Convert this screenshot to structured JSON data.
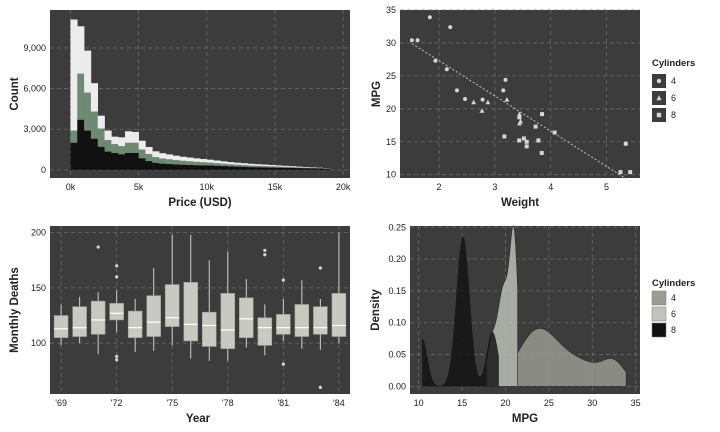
{
  "chart_data": [
    {
      "type": "histogram-stacked",
      "xlabel": "Price (USD)",
      "ylabel": "Count",
      "xlim": [
        -1500,
        20500
      ],
      "ylim": [
        -600,
        11800
      ],
      "xticks": [
        0,
        5000,
        10000,
        15000,
        20000
      ],
      "xtick_labels": [
        "0k",
        "5k",
        "10k",
        "15k",
        "20k"
      ],
      "yticks": [
        0,
        3000,
        6000,
        9000
      ],
      "ytick_labels": [
        "0",
        "3,000",
        "6,000",
        "9,000"
      ],
      "bin_edges": [
        0,
        500,
        1000,
        1500,
        2000,
        2500,
        3000,
        3500,
        4000,
        4500,
        5000,
        5500,
        6000,
        6500,
        7000,
        7500,
        8000,
        8500,
        9000,
        9500,
        10000,
        10500,
        11000,
        11500,
        12000,
        12500,
        13000,
        13500,
        14000,
        14500,
        15000,
        15500,
        16000,
        16500,
        17000,
        17500,
        18000,
        18500,
        19000
      ],
      "series": [
        {
          "name": "dark",
          "color": "#111111",
          "values": [
            2000,
            3700,
            2900,
            2300,
            1700,
            1350,
            1250,
            1150,
            1250,
            1250,
            850,
            650,
            520,
            460,
            430,
            400,
            380,
            360,
            340,
            330,
            320,
            300,
            280,
            260,
            240,
            220,
            200,
            190,
            180,
            170,
            160,
            150,
            140,
            130,
            120,
            110,
            100,
            90
          ]
        },
        {
          "name": "green",
          "color": "#6f8a72",
          "values": [
            900,
            3400,
            2800,
            2000,
            1350,
            850,
            650,
            600,
            750,
            750,
            650,
            520,
            420,
            380,
            350,
            320,
            290,
            270,
            250,
            230,
            210,
            190,
            170,
            150,
            140,
            130,
            120,
            110,
            100,
            90,
            80,
            70,
            60,
            50,
            40,
            35,
            30,
            25
          ]
        },
        {
          "name": "light",
          "color": "#ececec",
          "values": [
            8200,
            3500,
            3100,
            2100,
            950,
            700,
            550,
            650,
            850,
            800,
            650,
            520,
            430,
            390,
            360,
            330,
            300,
            280,
            260,
            240,
            220,
            200,
            180,
            160,
            150,
            140,
            130,
            120,
            110,
            100,
            90,
            80,
            70,
            60,
            50,
            40,
            30,
            20
          ]
        }
      ]
    },
    {
      "type": "scatter",
      "xlabel": "Weight",
      "ylabel": "MPG",
      "xlim": [
        1.3,
        5.6
      ],
      "ylim": [
        9.5,
        35.0
      ],
      "xticks": [
        2,
        3,
        4,
        5
      ],
      "xtick_labels": [
        "2",
        "3",
        "4",
        "5"
      ],
      "yticks": [
        10,
        15,
        20,
        25,
        30,
        35
      ],
      "ytick_labels": [
        "10",
        "15",
        "20",
        "25",
        "30",
        "35"
      ],
      "legend_title": "Cylinders",
      "legend": [
        "4",
        "6",
        "8"
      ],
      "points": [
        {
          "x": 2.62,
          "y": 21.0,
          "cyl": "6"
        },
        {
          "x": 2.875,
          "y": 21.0,
          "cyl": "6"
        },
        {
          "x": 2.32,
          "y": 22.8,
          "cyl": "4"
        },
        {
          "x": 3.215,
          "y": 21.4,
          "cyl": "6"
        },
        {
          "x": 3.44,
          "y": 18.7,
          "cyl": "8"
        },
        {
          "x": 3.46,
          "y": 18.1,
          "cyl": "6"
        },
        {
          "x": 3.57,
          "y": 14.3,
          "cyl": "8"
        },
        {
          "x": 3.19,
          "y": 24.4,
          "cyl": "4"
        },
        {
          "x": 3.15,
          "y": 22.8,
          "cyl": "4"
        },
        {
          "x": 3.44,
          "y": 19.2,
          "cyl": "6"
        },
        {
          "x": 3.44,
          "y": 17.8,
          "cyl": "6"
        },
        {
          "x": 4.07,
          "y": 16.4,
          "cyl": "8"
        },
        {
          "x": 3.73,
          "y": 17.3,
          "cyl": "8"
        },
        {
          "x": 3.78,
          "y": 15.2,
          "cyl": "8"
        },
        {
          "x": 5.25,
          "y": 10.4,
          "cyl": "8"
        },
        {
          "x": 5.424,
          "y": 10.4,
          "cyl": "8"
        },
        {
          "x": 5.345,
          "y": 14.7,
          "cyl": "8"
        },
        {
          "x": 2.2,
          "y": 32.4,
          "cyl": "4"
        },
        {
          "x": 1.615,
          "y": 30.4,
          "cyl": "4"
        },
        {
          "x": 1.835,
          "y": 33.9,
          "cyl": "4"
        },
        {
          "x": 2.465,
          "y": 21.5,
          "cyl": "4"
        },
        {
          "x": 3.52,
          "y": 15.5,
          "cyl": "8"
        },
        {
          "x": 3.435,
          "y": 15.2,
          "cyl": "8"
        },
        {
          "x": 3.84,
          "y": 13.3,
          "cyl": "8"
        },
        {
          "x": 3.845,
          "y": 19.2,
          "cyl": "8"
        },
        {
          "x": 1.935,
          "y": 27.3,
          "cyl": "4"
        },
        {
          "x": 2.14,
          "y": 26.0,
          "cyl": "4"
        },
        {
          "x": 1.513,
          "y": 30.4,
          "cyl": "4"
        },
        {
          "x": 3.17,
          "y": 15.8,
          "cyl": "8"
        },
        {
          "x": 2.77,
          "y": 19.7,
          "cyl": "6"
        },
        {
          "x": 3.57,
          "y": 15.0,
          "cyl": "8"
        },
        {
          "x": 2.78,
          "y": 21.4,
          "cyl": "4"
        }
      ],
      "trend": {
        "x0": 1.513,
        "y0": 29.9,
        "x1": 5.424,
        "y1": 9.0
      }
    },
    {
      "type": "boxplot",
      "xlabel": "Year",
      "ylabel": "Monthly Deaths",
      "xlim": [
        1968.4,
        1984.6
      ],
      "ylim": [
        54,
        206
      ],
      "xticks": [
        1969,
        1972,
        1975,
        1978,
        1981,
        1984
      ],
      "xtick_labels": [
        "'69",
        "'72",
        "'75",
        "'78",
        "'81",
        "'84"
      ],
      "yticks": [
        100,
        150,
        200
      ],
      "ytick_labels": [
        "100",
        "150",
        "200"
      ],
      "boxes": [
        {
          "year": 1969,
          "lw": 98,
          "q1": 105,
          "med": 113,
          "q3": 125,
          "uw": 135,
          "out": []
        },
        {
          "year": 1970,
          "lw": 100,
          "q1": 106,
          "med": 114,
          "q3": 133,
          "uw": 142,
          "out": []
        },
        {
          "year": 1971,
          "lw": 90,
          "q1": 108,
          "med": 121,
          "q3": 138,
          "uw": 146,
          "out": [
            187
          ]
        },
        {
          "year": 1972,
          "lw": 110,
          "q1": 121,
          "med": 127,
          "q3": 136,
          "uw": 148,
          "out": [
            160,
            170,
            88,
            85
          ]
        },
        {
          "year": 1973,
          "lw": 92,
          "q1": 105,
          "med": 114,
          "q3": 129,
          "uw": 140,
          "out": []
        },
        {
          "year": 1974,
          "lw": 93,
          "q1": 106,
          "med": 119,
          "q3": 143,
          "uw": 168,
          "out": []
        },
        {
          "year": 1975,
          "lw": 98,
          "q1": 115,
          "med": 123,
          "q3": 153,
          "uw": 198,
          "out": []
        },
        {
          "year": 1976,
          "lw": 86,
          "q1": 102,
          "med": 117,
          "q3": 155,
          "uw": 198,
          "out": []
        },
        {
          "year": 1977,
          "lw": 84,
          "q1": 97,
          "med": 116,
          "q3": 128,
          "uw": 175,
          "out": []
        },
        {
          "year": 1978,
          "lw": 84,
          "q1": 95,
          "med": 112,
          "q3": 145,
          "uw": 183,
          "out": []
        },
        {
          "year": 1979,
          "lw": 96,
          "q1": 105,
          "med": 122,
          "q3": 141,
          "uw": 158,
          "out": []
        },
        {
          "year": 1980,
          "lw": 89,
          "q1": 98,
          "med": 114,
          "q3": 123,
          "uw": 135,
          "out": [
            180,
            184
          ]
        },
        {
          "year": 1981,
          "lw": 102,
          "q1": 108,
          "med": 114,
          "q3": 126,
          "uw": 140,
          "out": [
            157,
            81
          ]
        },
        {
          "year": 1982,
          "lw": 95,
          "q1": 106,
          "med": 114,
          "q3": 135,
          "uw": 157,
          "out": []
        },
        {
          "year": 1983,
          "lw": 94,
          "q1": 108,
          "med": 114,
          "q3": 133,
          "uw": 140,
          "out": [
            168,
            60
          ]
        },
        {
          "year": 1984,
          "lw": 100,
          "q1": 106,
          "med": 116,
          "q3": 145,
          "uw": 200,
          "out": []
        }
      ]
    },
    {
      "type": "density",
      "xlabel": "MPG",
      "ylabel": "Density",
      "xlim": [
        9.0,
        35.5
      ],
      "ylim": [
        -0.012,
        0.252
      ],
      "xticks": [
        10,
        15,
        20,
        25,
        30,
        35
      ],
      "xtick_labels": [
        "10",
        "15",
        "20",
        "25",
        "30",
        "35"
      ],
      "yticks": [
        0.0,
        0.05,
        0.1,
        0.15,
        0.2,
        0.25
      ],
      "ytick_labels": [
        "0.00",
        "0.05",
        "0.10",
        "0.15",
        "0.20",
        "0.25"
      ],
      "legend_title": "Cylinders",
      "legend": [
        "4",
        "6",
        "8"
      ],
      "series": [
        {
          "name": "4",
          "color": "#9b9c93",
          "range": [
            21.4,
            33.9
          ],
          "comps": [
            [
              23.5,
              2.2,
              0.072
            ],
            [
              28,
              3.5,
              0.04
            ],
            [
              32.5,
              1.2,
              0.025
            ]
          ]
        },
        {
          "name": "6",
          "color": "#c0c2bb",
          "range": [
            17.8,
            21.4
          ],
          "comps": [
            [
              18.3,
              0.5,
              0.055
            ],
            [
              19.8,
              0.75,
              0.155
            ],
            [
              21.0,
              0.45,
              0.205
            ]
          ]
        },
        {
          "name": "8",
          "color": "#111111",
          "range": [
            10.4,
            19.2
          ],
          "comps": [
            [
              10.4,
              0.6,
              0.075
            ],
            [
              15.1,
              0.75,
              0.235
            ],
            [
              18.5,
              0.65,
              0.085
            ]
          ]
        }
      ]
    }
  ]
}
